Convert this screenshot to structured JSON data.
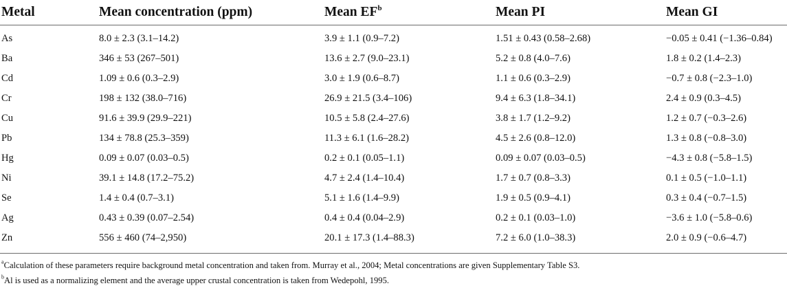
{
  "table": {
    "headers": [
      "Metal",
      "Mean concentration (ppm)",
      "Mean EF",
      "Mean PI",
      "Mean GI"
    ],
    "header_superscript_ef": "b",
    "rows": [
      [
        "As",
        "8.0 ± 2.3 (3.1–14.2)",
        "3.9 ± 1.1 (0.9–7.2)",
        "1.51 ± 0.43 (0.58–2.68)",
        "−0.05 ± 0.41 (−1.36–0.84)"
      ],
      [
        "Ba",
        "346 ± 53 (267–501)",
        "13.6 ± 2.7 (9.0–23.1)",
        "5.2 ± 0.8 (4.0–7.6)",
        "1.8 ± 0.2 (1.4–2.3)"
      ],
      [
        "Cd",
        "1.09 ± 0.6 (0.3–2.9)",
        "3.0 ± 1.9 (0.6–8.7)",
        "1.1 ± 0.6 (0.3–2.9)",
        "−0.7 ± 0.8 (−2.3–1.0)"
      ],
      [
        "Cr",
        "198 ± 132 (38.0–716)",
        "26.9 ± 21.5 (3.4–106)",
        "9.4 ± 6.3 (1.8–34.1)",
        "2.4 ± 0.9 (0.3–4.5)"
      ],
      [
        "Cu",
        "91.6 ± 39.9 (29.9–221)",
        "10.5 ± 5.8 (2.4–27.6)",
        "3.8 ± 1.7 (1.2–9.2)",
        "1.2 ± 0.7 (−0.3–2.6)"
      ],
      [
        "Pb",
        "134 ± 78.8 (25.3–359)",
        "11.3 ± 6.1 (1.6–28.2)",
        "4.5 ± 2.6 (0.8–12.0)",
        "1.3 ± 0.8 (−0.8–3.0)"
      ],
      [
        "Hg",
        "0.09 ± 0.07 (0.03–0.5)",
        "0.2 ± 0.1 (0.05–1.1)",
        "0.09 ± 0.07 (0.03–0.5)",
        "−4.3 ± 0.8 (−5.8–1.5)"
      ],
      [
        "Ni",
        "39.1 ± 14.8 (17.2–75.2)",
        "4.7 ± 2.4 (1.4–10.4)",
        "1.7 ± 0.7 (0.8–3.3)",
        "0.1 ± 0.5 (−1.0–1.1)"
      ],
      [
        "Se",
        "1.4 ± 0.4 (0.7–3.1)",
        "5.1 ± 1.6 (1.4–9.9)",
        "1.9 ± 0.5 (0.9–4.1)",
        "0.3 ± 0.4 (−0.7–1.5)"
      ],
      [
        "Ag",
        "0.43 ± 0.39 (0.07–2.54)",
        "0.4 ± 0.4 (0.04–2.9)",
        "0.2 ± 0.1 (0.03–1.0)",
        "−3.6 ± 1.0 (−5.8–0.6)"
      ],
      [
        "Zn",
        "556 ± 460 (74–2,950)",
        "20.1 ± 17.3 (1.4–88.3)",
        "7.2 ± 6.0 (1.0–38.3)",
        "2.0 ± 0.9 (−0.6–4.7)"
      ]
    ]
  },
  "footnotes": [
    {
      "mark": "a",
      "text": "Calculation of these parameters require background metal concentration and taken from. Murray et al., 2004; Metal concentrations are given Supplementary Table S3."
    },
    {
      "mark": "b",
      "text": "Al is used as a normalizing element and the average upper crustal concentration is taken from Wedepohl, 1995."
    }
  ]
}
